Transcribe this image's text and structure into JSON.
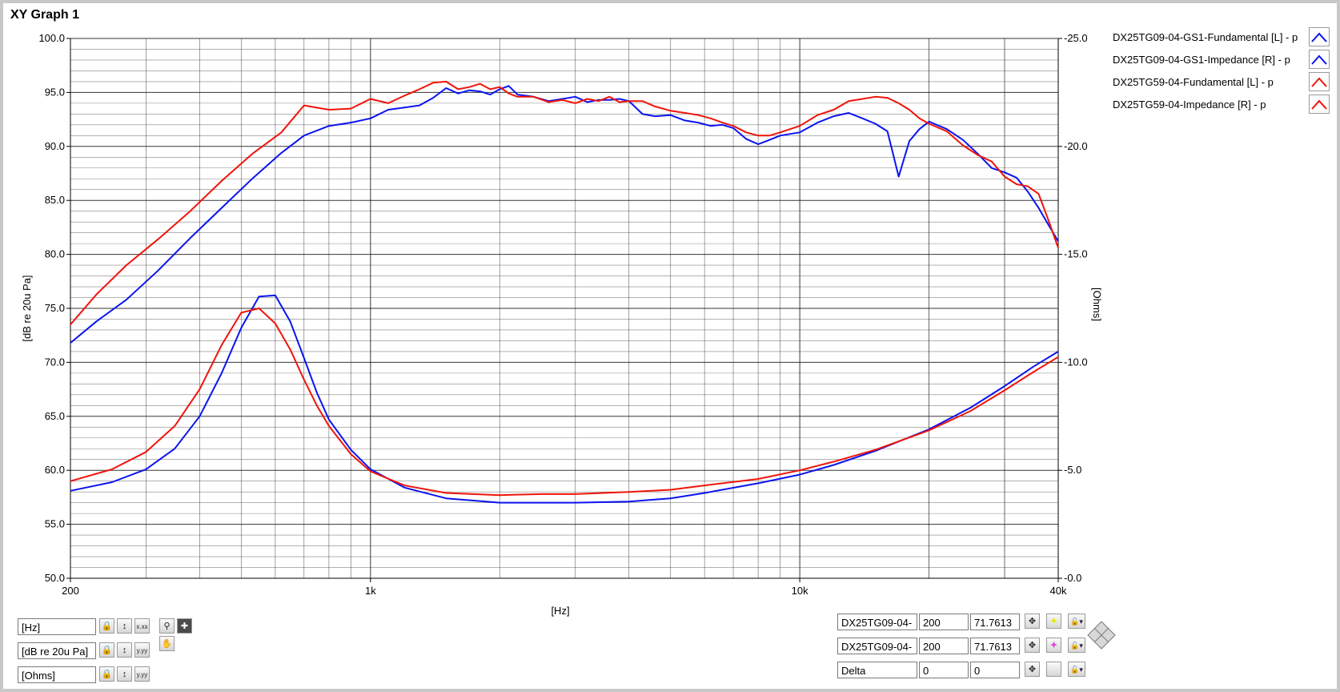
{
  "graph_title": "XY Graph 1",
  "colors": {
    "blue": "#0a14f0",
    "red": "#f0140a",
    "grid": "#202020"
  },
  "legend": [
    {
      "label": "DX25TG09-04-GS1-Fundamental [L] - p",
      "color": "#0a14f0",
      "icon": "line-glyph-icon"
    },
    {
      "label": "DX25TG09-04-GS1-Impedance [R] - p",
      "color": "#0a14f0",
      "icon": "line-glyph-icon"
    },
    {
      "label": "DX25TG59-04-Fundamental [L] - p",
      "color": "#f0140a",
      "icon": "line-glyph-icon"
    },
    {
      "label": "DX25TG59-04-Impedance [R] - p",
      "color": "#f0140a",
      "icon": "line-glyph-icon"
    }
  ],
  "scales": [
    {
      "name": "[Hz]",
      "icons": [
        "lock-icon",
        "x-autoscale-icon",
        "x-format-icon"
      ]
    },
    {
      "name": "[dB re 20u Pa]",
      "icons": [
        "lock-icon",
        "y-autoscale-icon",
        "y-format-icon"
      ]
    },
    {
      "name": "[Ohms]",
      "icons": [
        "lock-icon",
        "y-autoscale-icon",
        "y-format-icon"
      ]
    }
  ],
  "palette_icons": [
    "zoom-icon",
    "cursor-crosshair-icon",
    "pan-hand-icon"
  ],
  "cursors": [
    {
      "name": "DX25TG09-04-",
      "x": "200",
      "y": "71.7613",
      "crosshair_color": "#e8e800"
    },
    {
      "name": "DX25TG09-04-",
      "x": "200",
      "y": "71.7613",
      "crosshair_color": "#e040e0"
    },
    {
      "name": "Delta",
      "x": "0",
      "y": "0",
      "crosshair_color": ""
    }
  ],
  "chart_data": {
    "type": "line",
    "xlabel": "[Hz]",
    "ylabel": "[dB re 20u Pa]",
    "y2label": "[Ohms]",
    "xscale": "log",
    "xlim": [
      200,
      40000
    ],
    "ylim": [
      50,
      100
    ],
    "y2lim": [
      0,
      25
    ],
    "x_ticks": [
      200,
      1000,
      10000,
      40000
    ],
    "x_tick_labels": [
      "200",
      "1k",
      "10k",
      "40k"
    ],
    "y_ticks": [
      50,
      55,
      60,
      65,
      70,
      75,
      80,
      85,
      90,
      95,
      100
    ],
    "y_tick_labels": [
      "50.0",
      "55.0",
      "60.0",
      "65.0",
      "70.0",
      "75.0",
      "80.0",
      "85.0",
      "90.0",
      "95.0",
      "100.0"
    ],
    "y2_ticks": [
      0,
      5,
      10,
      15,
      20,
      25
    ],
    "y2_tick_labels": [
      "0.0",
      "5.0",
      "10.0",
      "15.0",
      "20.0",
      "25.0"
    ],
    "grid": true,
    "legend_position": "top-right",
    "series": [
      {
        "name": "DX25TG09-04-GS1-Fundamental [L] - p",
        "color": "#0a14f0",
        "axis": "left",
        "x": [
          200,
          230,
          270,
          320,
          380,
          450,
          530,
          620,
          700,
          800,
          900,
          1000,
          1100,
          1200,
          1300,
          1400,
          1500,
          1600,
          1700,
          1800,
          1900,
          2000,
          2100,
          2200,
          2400,
          2600,
          2800,
          3000,
          3200,
          3400,
          3600,
          3800,
          4000,
          4300,
          4600,
          5000,
          5400,
          5800,
          6200,
          6600,
          7000,
          7500,
          8000,
          8500,
          9000,
          10000,
          11000,
          12000,
          13000,
          14000,
          15000,
          16000,
          17000,
          18000,
          19000,
          20000,
          22000,
          24000,
          26000,
          28000,
          30000,
          32000,
          34000,
          36000,
          38000,
          40000
        ],
        "values": [
          71.8,
          73.8,
          75.8,
          78.5,
          81.5,
          84.3,
          87.0,
          89.4,
          91.0,
          91.9,
          92.2,
          92.6,
          93.4,
          93.6,
          93.8,
          94.5,
          95.4,
          94.9,
          95.2,
          95.1,
          94.8,
          95.3,
          95.6,
          94.8,
          94.6,
          94.2,
          94.4,
          94.6,
          94.1,
          94.3,
          94.3,
          94.4,
          94.2,
          93.0,
          92.8,
          92.9,
          92.4,
          92.2,
          91.9,
          92.0,
          91.7,
          90.7,
          90.2,
          90.6,
          91.0,
          91.3,
          92.2,
          92.8,
          93.1,
          92.6,
          92.1,
          91.4,
          87.2,
          90.5,
          91.6,
          92.3,
          91.6,
          90.6,
          89.3,
          88.0,
          87.6,
          87.1,
          85.8,
          84.3,
          82.7,
          81.2
        ]
      },
      {
        "name": "DX25TG09-04-GS1-Impedance [R] - p",
        "color": "#0a14f0",
        "axis": "right",
        "x": [
          200,
          250,
          300,
          350,
          400,
          450,
          500,
          550,
          600,
          650,
          700,
          750,
          800,
          900,
          1000,
          1200,
          1500,
          2000,
          2500,
          3000,
          4000,
          5000,
          6000,
          8000,
          10000,
          12000,
          15000,
          20000,
          25000,
          30000,
          35000,
          40000
        ],
        "values": [
          4.05,
          4.45,
          5.05,
          6.0,
          7.5,
          9.5,
          11.6,
          13.05,
          13.1,
          11.9,
          10.2,
          8.6,
          7.35,
          5.95,
          5.05,
          4.2,
          3.7,
          3.5,
          3.5,
          3.5,
          3.55,
          3.7,
          3.95,
          4.4,
          4.8,
          5.25,
          5.9,
          6.9,
          7.9,
          8.9,
          9.8,
          10.5
        ]
      },
      {
        "name": "DX25TG59-04-Fundamental [L] - p",
        "color": "#f0140a",
        "axis": "left",
        "x": [
          200,
          230,
          270,
          320,
          380,
          450,
          530,
          620,
          700,
          800,
          900,
          1000,
          1100,
          1200,
          1300,
          1400,
          1500,
          1600,
          1700,
          1800,
          1900,
          2000,
          2100,
          2200,
          2400,
          2600,
          2800,
          3000,
          3200,
          3400,
          3600,
          3800,
          4000,
          4300,
          4600,
          5000,
          5400,
          5800,
          6200,
          6600,
          7000,
          7500,
          8000,
          8500,
          9000,
          10000,
          11000,
          12000,
          13000,
          14000,
          15000,
          16000,
          17000,
          18000,
          19000,
          20000,
          22000,
          24000,
          26000,
          28000,
          30000,
          32000,
          34000,
          36000,
          38000,
          40000
        ],
        "values": [
          73.5,
          76.3,
          79.0,
          81.4,
          84.0,
          86.8,
          89.3,
          91.3,
          93.8,
          93.4,
          93.5,
          94.4,
          94.0,
          94.7,
          95.3,
          95.9,
          96.0,
          95.3,
          95.5,
          95.8,
          95.3,
          95.5,
          94.9,
          94.6,
          94.6,
          94.1,
          94.3,
          94.0,
          94.4,
          94.2,
          94.6,
          94.1,
          94.2,
          94.2,
          93.7,
          93.3,
          93.1,
          92.9,
          92.6,
          92.2,
          91.9,
          91.3,
          91.0,
          91.0,
          91.3,
          91.9,
          92.9,
          93.4,
          94.2,
          94.4,
          94.6,
          94.5,
          94.0,
          93.4,
          92.6,
          92.1,
          91.4,
          90.1,
          89.2,
          88.6,
          87.2,
          86.5,
          86.3,
          85.6,
          83.1,
          80.6
        ]
      },
      {
        "name": "DX25TG59-04-Impedance [R] - p",
        "color": "#f0140a",
        "axis": "right",
        "x": [
          200,
          250,
          300,
          350,
          400,
          450,
          500,
          550,
          600,
          650,
          700,
          750,
          800,
          900,
          1000,
          1200,
          1500,
          2000,
          2500,
          3000,
          4000,
          5000,
          6000,
          8000,
          10000,
          12000,
          15000,
          20000,
          25000,
          30000,
          35000,
          40000
        ],
        "values": [
          4.5,
          5.05,
          5.85,
          7.05,
          8.75,
          10.8,
          12.3,
          12.5,
          11.8,
          10.6,
          9.2,
          8.0,
          7.05,
          5.75,
          4.95,
          4.3,
          3.95,
          3.85,
          3.9,
          3.9,
          4.0,
          4.1,
          4.3,
          4.6,
          5.0,
          5.4,
          5.95,
          6.85,
          7.75,
          8.7,
          9.55,
          10.25
        ]
      }
    ]
  }
}
